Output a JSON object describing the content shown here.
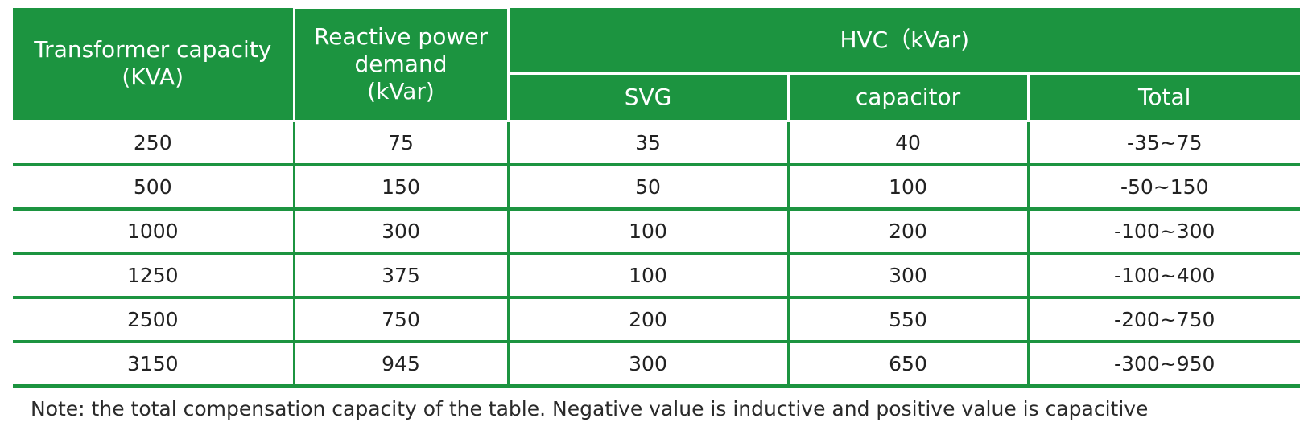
{
  "header": {
    "transformer_capacity": "Transformer capacity\n(KVA)",
    "reactive_power_demand": "Reactive power\ndemand\n(kVar)",
    "hvc": "HVC（kVar)",
    "sub_columns": [
      "SVG",
      "capacitor",
      "Total"
    ]
  },
  "rows": [
    [
      "250",
      "75",
      "35",
      "40",
      "-35~75"
    ],
    [
      "500",
      "150",
      "50",
      "100",
      "-50~150"
    ],
    [
      "1000",
      "300",
      "100",
      "200",
      "-100~300"
    ],
    [
      "1250",
      "375",
      "100",
      "300",
      "-100~400"
    ],
    [
      "2500",
      "750",
      "200",
      "550",
      "-200~750"
    ],
    [
      "3150",
      "945",
      "300",
      "650",
      "-300~950"
    ]
  ],
  "note": "Note: the total compensation capacity of the table. Negative value is inductive and positive value is capacitive",
  "colors": {
    "header_background": "#1c9440",
    "header_text": "#ffffff",
    "grid_lines": "#1c9440"
  }
}
